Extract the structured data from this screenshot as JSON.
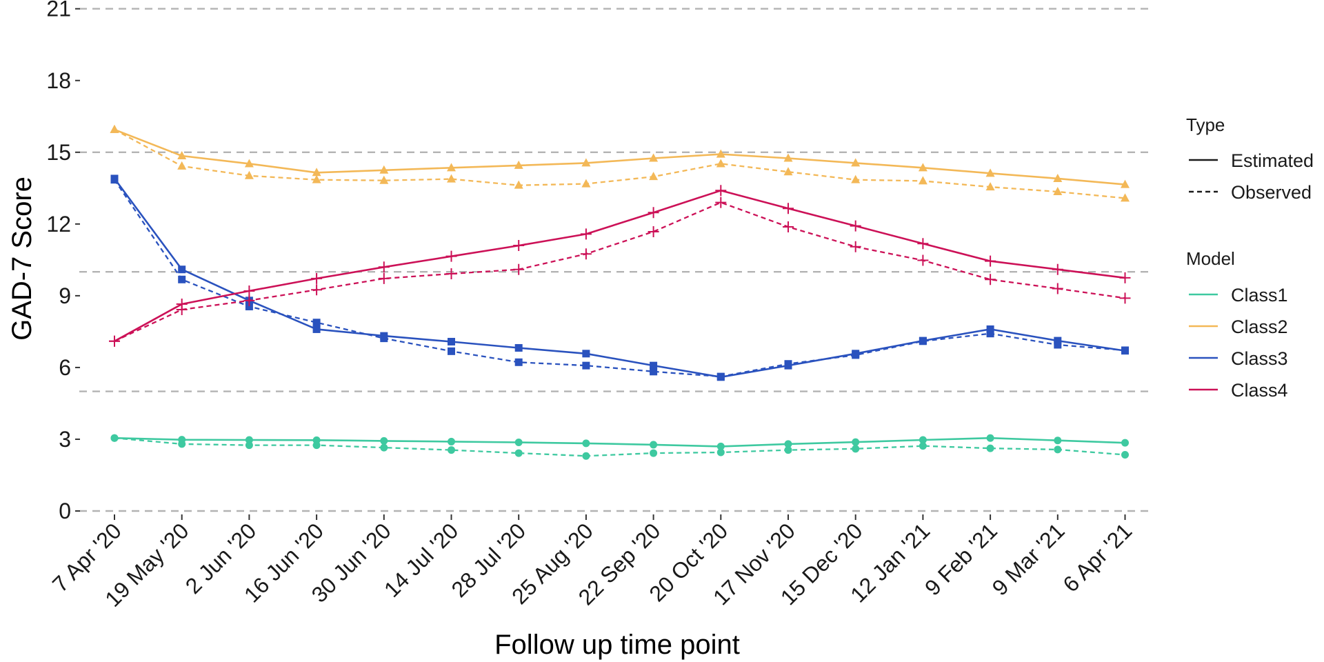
{
  "chart_data": {
    "type": "line",
    "title": "",
    "xlabel": "Follow up time point",
    "ylabel": "GAD-7 Score",
    "ylim": [
      0,
      21
    ],
    "yticks": [
      0,
      3,
      6,
      9,
      12,
      15,
      18,
      21
    ],
    "reference_lines": [
      5,
      10,
      15,
      21,
      0
    ],
    "categories": [
      "7 Apr '20",
      "19 May '20",
      "2 Jun '20",
      "16 Jun '20",
      "30 Jun '20",
      "14 Jul '20",
      "28 Jul '20",
      "25 Aug '20",
      "22 Sep '20",
      "20 Oct '20",
      "17 Nov '20",
      "15 Dec '20",
      "12 Jan '21",
      "9 Feb '21",
      "9 Mar '21",
      "6 Apr '21"
    ],
    "legend": {
      "placement": "right",
      "type_title": "Type",
      "type_entries": [
        {
          "label": "Estimated",
          "dash": "solid"
        },
        {
          "label": "Observed",
          "dash": "dashed"
        }
      ],
      "model_title": "Model"
    },
    "series": [
      {
        "name": "Class1",
        "color": "#3ec9a0",
        "marker": "circle",
        "estimated": [
          3.05,
          2.98,
          2.97,
          2.96,
          2.93,
          2.9,
          2.87,
          2.83,
          2.77,
          2.7,
          2.8,
          2.88,
          2.97,
          3.05,
          2.95,
          2.85
        ],
        "observed": [
          3.05,
          2.8,
          2.75,
          2.75,
          2.65,
          2.55,
          2.42,
          2.3,
          2.42,
          2.45,
          2.55,
          2.6,
          2.72,
          2.62,
          2.57,
          2.35
        ]
      },
      {
        "name": "Class2",
        "color": "#f3b857",
        "marker": "triangle",
        "estimated": [
          15.95,
          14.85,
          14.52,
          14.15,
          14.25,
          14.35,
          14.45,
          14.55,
          14.75,
          14.92,
          14.75,
          14.55,
          14.35,
          14.12,
          13.9,
          13.65
        ],
        "observed": [
          15.95,
          14.42,
          14.02,
          13.85,
          13.82,
          13.88,
          13.62,
          13.68,
          13.98,
          14.52,
          14.18,
          13.85,
          13.8,
          13.55,
          13.35,
          13.08
        ]
      },
      {
        "name": "Class3",
        "color": "#2a52be",
        "marker": "square",
        "estimated": [
          13.9,
          10.1,
          8.8,
          7.6,
          7.32,
          7.08,
          6.82,
          6.58,
          6.08,
          5.6,
          6.08,
          6.58,
          7.12,
          7.6,
          7.12,
          6.7
        ],
        "observed": [
          13.85,
          9.68,
          8.55,
          7.88,
          7.22,
          6.68,
          6.22,
          6.08,
          5.83,
          5.62,
          6.15,
          6.52,
          7.1,
          7.42,
          6.95,
          6.72
        ]
      },
      {
        "name": "Class4",
        "color": "#cc1157",
        "marker": "plus",
        "estimated": [
          7.1,
          8.65,
          9.2,
          9.72,
          10.2,
          10.65,
          11.1,
          11.58,
          12.48,
          13.4,
          12.65,
          11.92,
          11.18,
          10.45,
          10.1,
          9.75
        ],
        "observed": [
          7.1,
          8.42,
          8.8,
          9.25,
          9.72,
          9.92,
          10.1,
          10.75,
          11.68,
          12.9,
          11.88,
          11.05,
          10.48,
          9.68,
          9.3,
          8.9
        ]
      }
    ]
  }
}
